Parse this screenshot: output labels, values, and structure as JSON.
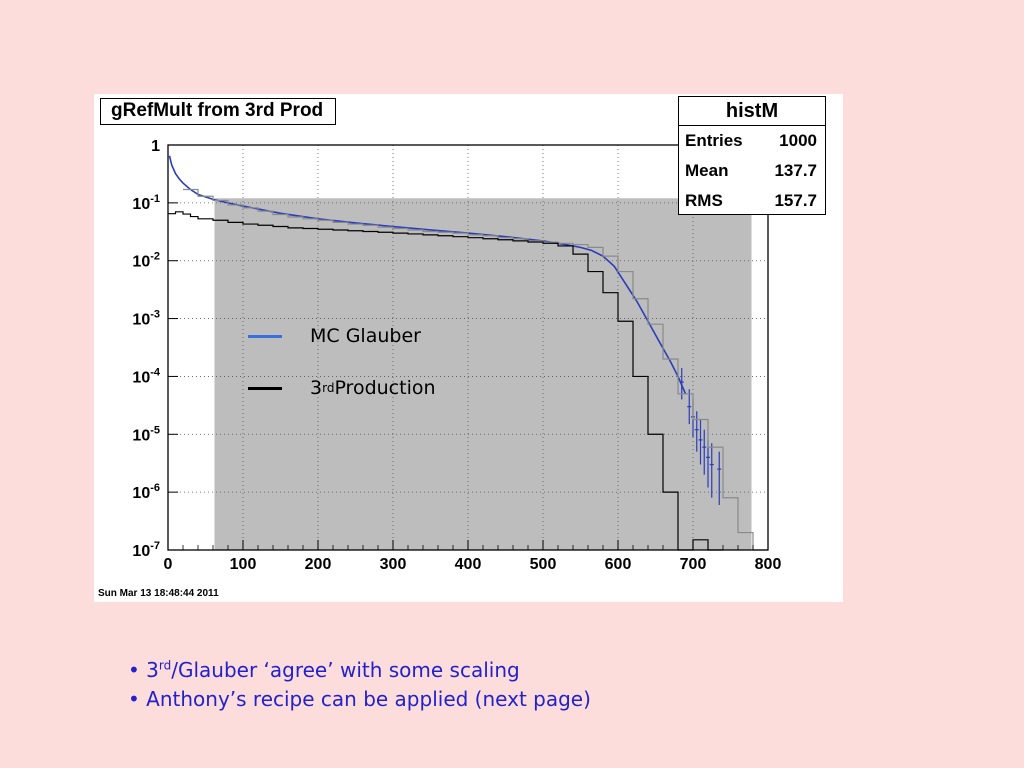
{
  "slide": {
    "bullets": [
      {
        "prefix": "• 3",
        "sup": "rd",
        "suffix": "/Glauber ‘agree’ with some scaling"
      },
      {
        "prefix": "• Anthony’s recipe can be applied (next page)",
        "sup": "",
        "suffix": ""
      }
    ],
    "colors": {
      "background": "#fddcdc",
      "bullet_text": "#2222cc"
    }
  },
  "canvas": {
    "title": "gRefMult from 3rd Prod",
    "timestamp": "Sun Mar 13 18:48:44 2011",
    "stats": {
      "name": "histM",
      "rows": [
        {
          "label": "Entries",
          "value": "1000"
        },
        {
          "label": "Mean",
          "value": "137.7"
        },
        {
          "label": "RMS",
          "value": "157.7"
        }
      ]
    },
    "legend": [
      {
        "label_main": "MC Glauber",
        "label_sup": "",
        "label_tail": "",
        "color": "#3a6fe0"
      },
      {
        "label_main": "3",
        "label_sup": "rd",
        "label_tail": " Production",
        "color": "#000000"
      }
    ]
  },
  "chart_data": {
    "type": "line",
    "title": "gRefMult from 3rd Prod",
    "xlabel": "",
    "ylabel": "",
    "xlim": [
      0,
      800
    ],
    "ylim": [
      1e-07,
      1
    ],
    "y_scale": "log",
    "grid": true,
    "x_ticks": [
      0,
      100,
      200,
      300,
      400,
      500,
      600,
      700,
      800
    ],
    "y_ticks": [
      {
        "value": 1,
        "base": "1",
        "exp": ""
      },
      {
        "value": 0.1,
        "base": "10",
        "exp": "-1"
      },
      {
        "value": 0.01,
        "base": "10",
        "exp": "-2"
      },
      {
        "value": 0.001,
        "base": "10",
        "exp": "-3"
      },
      {
        "value": 0.0001,
        "base": "10",
        "exp": "-4"
      },
      {
        "value": 1e-05,
        "base": "10",
        "exp": "-5"
      },
      {
        "value": 1e-06,
        "base": "10",
        "exp": "-6"
      },
      {
        "value": 1e-07,
        "base": "10",
        "exp": "-7"
      }
    ],
    "shaded_region": {
      "x": [
        62,
        778
      ],
      "y_top": 0.12,
      "color": "#bdbdbd"
    },
    "series": [
      {
        "name": "MC Glauber",
        "style": "line",
        "color": "#2a3dbb",
        "x": [
          2,
          5,
          10,
          15,
          20,
          30,
          40,
          60,
          80,
          100,
          150,
          200,
          250,
          300,
          350,
          400,
          450,
          500,
          530,
          550,
          565,
          580,
          595,
          610,
          625,
          640,
          655,
          670,
          680,
          690
        ],
        "y": [
          0.65,
          0.45,
          0.32,
          0.26,
          0.22,
          0.17,
          0.14,
          0.115,
          0.1,
          0.088,
          0.066,
          0.053,
          0.045,
          0.039,
          0.034,
          0.03,
          0.026,
          0.022,
          0.019,
          0.017,
          0.015,
          0.012,
          0.008,
          0.004,
          0.002,
          0.0009,
          0.0004,
          0.00018,
          0.0001,
          5e-05
        ],
        "error_bars": [
          {
            "x": 685,
            "y": 8e-05,
            "lo": 4e-05,
            "hi": 0.00014
          },
          {
            "x": 695,
            "y": 3e-05,
            "lo": 1.5e-05,
            "hi": 6e-05
          },
          {
            "x": 700,
            "y": 2e-05,
            "lo": 9e-06,
            "hi": 4e-05
          },
          {
            "x": 705,
            "y": 1.2e-05,
            "lo": 5e-06,
            "hi": 2.5e-05
          },
          {
            "x": 710,
            "y": 8e-06,
            "lo": 3e-06,
            "hi": 1.8e-05
          },
          {
            "x": 715,
            "y": 6e-06,
            "lo": 2e-06,
            "hi": 1.2e-05
          },
          {
            "x": 720,
            "y": 4e-06,
            "lo": 1.2e-06,
            "hi": 8e-06
          },
          {
            "x": 725,
            "y": 3e-06,
            "lo": 8e-07,
            "hi": 7e-06
          },
          {
            "x": 735,
            "y": 2.5e-06,
            "lo": 6e-07,
            "hi": 5e-06
          }
        ]
      },
      {
        "name": "",
        "style": "step",
        "color": "#8a8a8a",
        "x": [
          20,
          40,
          60,
          80,
          100,
          120,
          140,
          160,
          180,
          200,
          220,
          240,
          260,
          280,
          300,
          320,
          340,
          360,
          380,
          400,
          420,
          440,
          460,
          480,
          500,
          520,
          540,
          560,
          580,
          600,
          620,
          640,
          660,
          680,
          700,
          720,
          740,
          760,
          780
        ],
        "y": [
          0.17,
          0.13,
          0.11,
          0.092,
          0.082,
          0.072,
          0.063,
          0.057,
          0.053,
          0.05,
          0.046,
          0.043,
          0.041,
          0.038,
          0.036,
          0.034,
          0.032,
          0.031,
          0.03,
          0.028,
          0.027,
          0.025,
          0.024,
          0.022,
          0.021,
          0.02,
          0.019,
          0.017,
          0.012,
          0.0065,
          0.0022,
          0.0008,
          0.0002,
          5e-05,
          1.8e-05,
          6e-06,
          8e-07,
          2e-07,
          1e-07
        ]
      },
      {
        "name": "3rd Production",
        "style": "step",
        "color": "#000000",
        "x": [
          0,
          10,
          20,
          30,
          40,
          60,
          80,
          100,
          120,
          140,
          160,
          180,
          200,
          220,
          240,
          260,
          280,
          300,
          320,
          340,
          360,
          380,
          400,
          420,
          440,
          460,
          480,
          500,
          520,
          540,
          560,
          580,
          600,
          620,
          640,
          660,
          680,
          700,
          720
        ],
        "y": [
          0.065,
          0.07,
          0.064,
          0.058,
          0.053,
          0.05,
          0.046,
          0.043,
          0.041,
          0.039,
          0.037,
          0.036,
          0.035,
          0.034,
          0.033,
          0.032,
          0.031,
          0.03,
          0.029,
          0.028,
          0.027,
          0.026,
          0.025,
          0.024,
          0.023,
          0.022,
          0.021,
          0.02,
          0.018,
          0.013,
          0.0065,
          0.0028,
          0.0009,
          0.0001,
          1e-05,
          1e-06,
          1e-07,
          1.5e-07,
          1e-07
        ]
      }
    ]
  }
}
